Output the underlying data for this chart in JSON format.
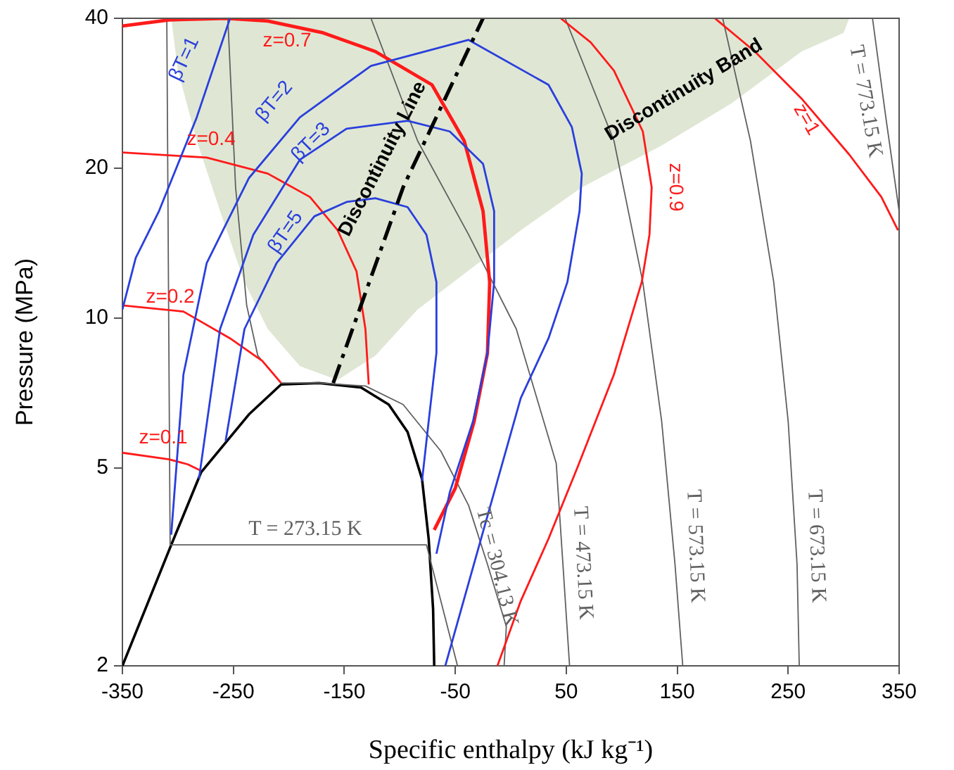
{
  "chart_data": {
    "type": "line",
    "xlabel": "Specific enthalpy (kJ kg⁻¹)",
    "ylabel": "Pressure (MPa)",
    "xlim": [
      -350,
      350
    ],
    "xticks": [
      -350,
      -250,
      -150,
      -50,
      50,
      150,
      250,
      350
    ],
    "ylim": [
      2,
      40
    ],
    "yticks": [
      2,
      5,
      10,
      20,
      40
    ],
    "log": "y",
    "grid": false,
    "legend": false,
    "marker": "none",
    "series": [
      {
        "name": "Discontinuity Band",
        "type": "area",
        "color": "#dfe7d4",
        "x": [
          -306,
          305,
          300,
          262,
          199,
          136,
          64,
          9,
          -29,
          -84,
          -122,
          -156,
          -190,
          -219,
          -240,
          -262,
          -283,
          -300,
          -306
        ],
        "values": [
          40,
          40,
          37.4,
          34.3,
          27,
          22.2,
          18.3,
          15,
          12.9,
          10.4,
          8.4,
          7.5,
          8,
          9.5,
          11.8,
          16.4,
          22.7,
          31.4,
          40
        ]
      },
      {
        "color": "#000000",
        "x": [
          -350,
          -306,
          -279,
          -236,
          -207,
          -173,
          -135,
          -110,
          -93,
          -80,
          -74,
          -70,
          -69
        ],
        "values": [
          2,
          3.5,
          4.9,
          6.4,
          7.35,
          7.4,
          7.25,
          6.7,
          5.9,
          4.75,
          3.6,
          2.6,
          2
        ]
      },
      {
        "name": "T = 273.15 K",
        "color": "#606060",
        "x": [
          -310,
          -307,
          -76,
          -48
        ],
        "values": [
          40,
          3.5,
          3.5,
          2
        ]
      },
      {
        "name": "Tc = 304.13 K",
        "color": "#606060",
        "x": [
          -255,
          -248,
          -238,
          -228,
          -207,
          -173,
          -131,
          -97,
          -63,
          -38,
          -21,
          -4,
          -6
        ],
        "values": [
          40,
          18.3,
          10.6,
          8.4,
          7.4,
          7.4,
          7.3,
          6.7,
          5.4,
          4.2,
          3.2,
          2.4,
          2
        ]
      },
      {
        "name": "T = 473.15 K",
        "color": "#606060",
        "x": [
          -126,
          -84,
          -38,
          5,
          41,
          47,
          53
        ],
        "values": [
          40,
          22.7,
          14.7,
          9.5,
          5.1,
          3.2,
          2
        ]
      },
      {
        "name": "T = 573.15 K",
        "color": "#606060",
        "x": [
          49,
          93,
          119,
          136,
          148,
          155
        ],
        "values": [
          40,
          22.7,
          11.8,
          6.2,
          3.2,
          2
        ]
      },
      {
        "name": "T = 673.15 K",
        "color": "#606060",
        "x": [
          191,
          216,
          237,
          250,
          258,
          260
        ],
        "values": [
          40,
          22.7,
          11.8,
          6.2,
          3.2,
          2
        ]
      },
      {
        "name": "T = 773.15 K",
        "color": "#606060",
        "x": [
          326,
          338,
          350
        ],
        "values": [
          40,
          25.3,
          16.4
        ]
      },
      {
        "name": "z=0.1",
        "color": "#ff1a1a",
        "x": [
          -350,
          -308,
          -291,
          -279
        ],
        "values": [
          5.36,
          5.2,
          5.08,
          4.93
        ]
      },
      {
        "name": "z=0.2",
        "color": "#ff1a1a",
        "x": [
          -350,
          -295,
          -253,
          -224,
          -207
        ],
        "values": [
          10.6,
          10.3,
          9.1,
          8.2,
          7.4
        ]
      },
      {
        "name": "z=0.4",
        "color": "#ff1a1a",
        "x": [
          -350,
          -274,
          -219,
          -181,
          -156,
          -139,
          -131,
          -128
        ],
        "values": [
          21.5,
          21,
          19.5,
          17.5,
          15,
          12.4,
          9.5,
          7.35
        ]
      },
      {
        "name": "z=0.7",
        "color": "#ff1a1a",
        "x": [
          -350,
          -308,
          -256,
          -219,
          -169,
          -122,
          -71,
          -42,
          -25,
          -19,
          -21,
          -33,
          -50,
          -69
        ],
        "values": [
          38.6,
          39.7,
          40,
          39.5,
          37.4,
          34.3,
          29.4,
          22.7,
          16.4,
          11.8,
          8.5,
          6.2,
          4.55,
          3.75
        ]
      },
      {
        "name": "z=0.9",
        "color": "#ff1a1a",
        "x": [
          45,
          72,
          93,
          119,
          127,
          125,
          118,
          93,
          60,
          34,
          9,
          -12
        ],
        "values": [
          40,
          35.8,
          31.4,
          23.7,
          18.3,
          14.7,
          11.8,
          7.7,
          5,
          3.6,
          2.7,
          2
        ]
      },
      {
        "name": "z=1",
        "color": "#ff1a1a",
        "x": [
          184,
          220,
          262,
          305,
          334,
          349
        ],
        "values": [
          40,
          34.3,
          27.6,
          21.3,
          17.5,
          15
        ]
      },
      {
        "name": "βT=1",
        "color": "#2a3fdc",
        "x": [
          -350,
          -338,
          -317,
          -283,
          -253
        ],
        "values": [
          10.4,
          13.2,
          16.4,
          25.3,
          40
        ]
      },
      {
        "name": "βT=2",
        "color": "#2a3fdc",
        "x": [
          -306,
          -295,
          -274,
          -236,
          -190,
          -126,
          -38,
          34,
          55,
          64,
          62,
          51,
          34,
          9,
          -21,
          -59
        ],
        "values": [
          3.67,
          7.7,
          12.9,
          19.1,
          25.3,
          32.1,
          36.2,
          29.4,
          24.2,
          19.5,
          16.4,
          11.8,
          9.1,
          6.9,
          4,
          2
        ]
      },
      {
        "name": "βT=3",
        "color": "#2a3fdc",
        "x": [
          -281,
          -262,
          -232,
          -190,
          -148,
          -93,
          -55,
          -25,
          -15,
          -15,
          -21,
          -34,
          -55,
          -67
        ],
        "values": [
          4.75,
          9.5,
          14.7,
          20.8,
          24,
          24.9,
          23.7,
          20.4,
          16.4,
          11.8,
          8.5,
          6.2,
          4.46,
          3.36
        ]
      },
      {
        "name": "βT=5",
        "color": "#2a3fdc",
        "x": [
          -257,
          -240,
          -211,
          -177,
          -148,
          -122,
          -93,
          -76,
          -67,
          -67,
          -74,
          -80
        ],
        "values": [
          5.66,
          9.5,
          12.9,
          16,
          17.1,
          17.4,
          16.7,
          14.7,
          11.8,
          8.5,
          6.2,
          4.7
        ]
      },
      {
        "name": "Discontinuity Line",
        "color": "#000000",
        "line_style": "dashed",
        "x": [
          -160,
          -97,
          -25
        ],
        "values": [
          7.4,
          18.3,
          40
        ]
      }
    ]
  }
}
